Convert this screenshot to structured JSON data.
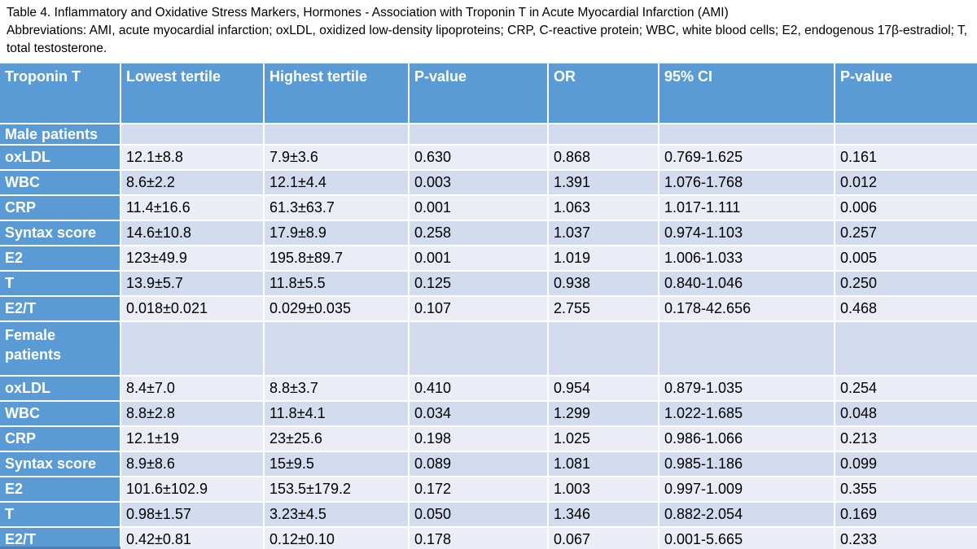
{
  "caption": {
    "title": "Table 4. Inflammatory and Oxidative Stress Markers, Hormones - Association with Troponin T in Acute Myocardial Infarction (AMI)",
    "abbreviations": "Abbreviations: AMI, acute myocardial infarction; oxLDL, oxidized low-density lipoproteins; CRP, C-reactive protein; WBC, white blood cells; E2, endogenous 17β-estradiol; T, total testosterone."
  },
  "table": {
    "columns": [
      "Troponin T",
      "Lowest tertile",
      "Highest tertile",
      "P-value",
      "OR",
      "95% CI",
      "P-value"
    ],
    "sections": [
      {
        "id": "male",
        "label": "Male patients",
        "rows": [
          {
            "label": "oxLDL",
            "values": [
              "12.1±8.8",
              "7.9±3.6",
              "0.630",
              "0.868",
              "0.769-1.625",
              "0.161"
            ]
          },
          {
            "label": "WBC",
            "values": [
              "8.6±2.2",
              "12.1±4.4",
              "0.003",
              "1.391",
              "1.076-1.768",
              "0.012"
            ]
          },
          {
            "label": "CRP",
            "values": [
              "11.4±16.6",
              "61.3±63.7",
              "0.001",
              "1.063",
              "1.017-1.111",
              "0.006"
            ]
          },
          {
            "label": "Syntax score",
            "values": [
              "14.6±10.8",
              "17.9±8.9",
              "0.258",
              "1.037",
              "0.974-1.103",
              "0.257"
            ]
          },
          {
            "label": "E2",
            "values": [
              "123±49.9",
              "195.8±89.7",
              "0.001",
              "1.019",
              "1.006-1.033",
              "0.005"
            ]
          },
          {
            "label": "T",
            "values": [
              "13.9±5.7",
              "11.8±5.5",
              "0.125",
              "0.938",
              "0.840-1.046",
              "0.250"
            ]
          },
          {
            "label": "E2/T",
            "values": [
              "0.018±0.021",
              "0.029±0.035",
              "0.107",
              "2.755",
              "0.178-42.656",
              "0.468"
            ]
          }
        ]
      },
      {
        "id": "female",
        "label": "Female patients",
        "rows": [
          {
            "label": "oxLDL",
            "values": [
              "8.4±7.0",
              "8.8±3.7",
              "0.410",
              "0.954",
              "0.879-1.035",
              "0.254"
            ]
          },
          {
            "label": "WBC",
            "values": [
              "8.8±2.8",
              "11.8±4.1",
              "0.034",
              "1.299",
              "1.022-1.685",
              "0.048"
            ]
          },
          {
            "label": "CRP",
            "values": [
              "12.1±19",
              "23±25.6",
              "0.198",
              "1.025",
              "0.986-1.066",
              "0.213"
            ]
          },
          {
            "label": "Syntax score",
            "values": [
              "8.9±8.6",
              "15±9.5",
              "0.089",
              "1.081",
              "0.985-1.186",
              "0.099"
            ]
          },
          {
            "label": "E2",
            "values": [
              "101.6±102.9",
              "153.5±179.2",
              "0.172",
              "1.003",
              "0.997-1.009",
              "0.355"
            ]
          },
          {
            "label": "T",
            "values": [
              "0.98±1.57",
              "3.23±4.5",
              "0.050",
              "1.346",
              "0.882-2.054",
              "0.169"
            ]
          },
          {
            "label": "E2/T",
            "values": [
              "0.42±0.81",
              "0.12±0.10",
              "0.178",
              "0.067",
              "0.001-5.665",
              "0.233"
            ]
          }
        ]
      }
    ]
  },
  "colors": {
    "header_blue": "#5B9BD5",
    "band_dark": "#D2DCEE",
    "band_light": "#EAEDF6",
    "table_edge": "#4A7EB5",
    "header_text": "#FFFFFF",
    "body_text": "#000000"
  }
}
